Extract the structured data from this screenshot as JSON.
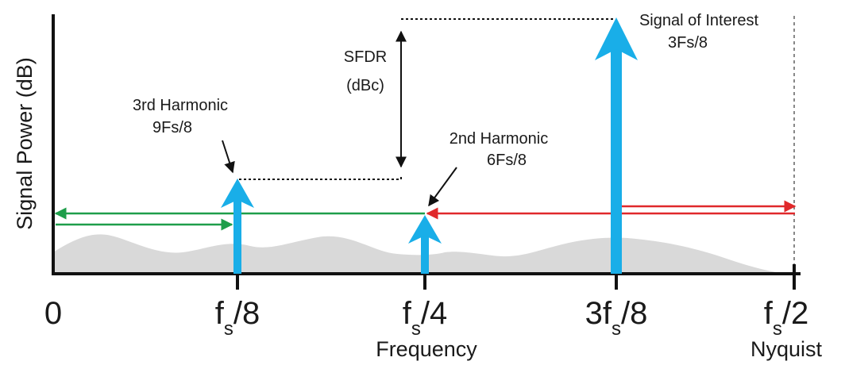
{
  "axes": {
    "y_label": "Signal Power (dB)",
    "x_label": "Frequency",
    "nyquist_label": "Nyquist"
  },
  "x_ticks": [
    {
      "main": "0",
      "sub": "",
      "post": ""
    },
    {
      "main": "f",
      "sub": "s",
      "post": "/8"
    },
    {
      "main": "f",
      "sub": "s",
      "post": "/4"
    },
    {
      "main": "3f",
      "sub": "s",
      "post": "/8"
    },
    {
      "main": "f",
      "sub": "s",
      "post": "/2"
    }
  ],
  "annotations": {
    "sfdr_line1": "SFDR",
    "sfdr_line2": "(dBc)",
    "third_harmonic_line1": "3rd Harmonic",
    "third_harmonic_line2": "9Fs/8",
    "second_harmonic_line1": "2nd Harmonic",
    "second_harmonic_line2": "6Fs/8",
    "signal_line1": "Signal of Interest",
    "signal_line2": "3Fs/8"
  },
  "colors": {
    "spur": "#19aee8",
    "noise": "#d9d9d9",
    "fold_green": "#1e9e4a",
    "fold_red": "#e0292b",
    "axis": "#111111"
  }
}
